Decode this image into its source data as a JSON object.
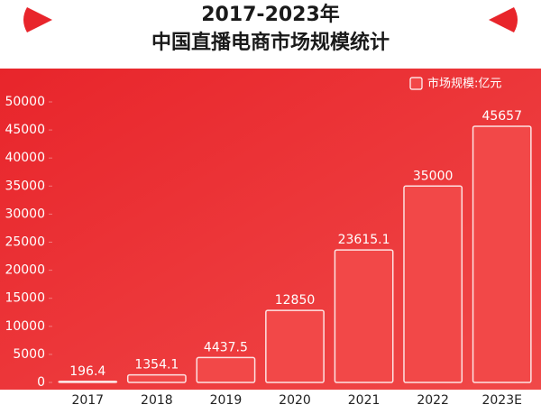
{
  "chart_data": {
    "type": "bar",
    "title": "2017-2023年",
    "subtitle": "中国直播电商市场规模统计",
    "categories": [
      "2017",
      "2018",
      "2019",
      "2020",
      "2021",
      "2022",
      "2023E"
    ],
    "series": [
      {
        "name": "市场规模:亿元",
        "color": "#f24848",
        "values": [
          196.4,
          1354.1,
          4437.5,
          12850,
          23615.1,
          35000,
          45657
        ]
      }
    ],
    "ylim": [
      0,
      54500
    ],
    "yticks": [
      0,
      5000,
      10000,
      15000,
      20000,
      25000,
      30000,
      35000,
      40000,
      45000,
      50000
    ],
    "legend": "top-right",
    "data_labels": true
  }
}
